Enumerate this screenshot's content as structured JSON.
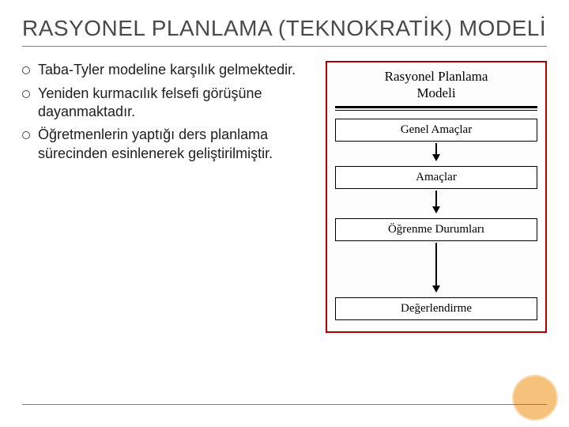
{
  "title": "RASYONEL PLANLAMA (TEKNOKRATİK) MODELİ",
  "bullets": [
    "Taba-Tyler modeline karşılık gelmektedir.",
    "Yeniden kurmacılık felsefi görüşüne dayanmaktadır.",
    "Öğretmenlerin yaptığı ders planlama sürecinden esinlenerek geliştirilmiştir."
  ],
  "diagram": {
    "title_line1": "Rasyonel Planlama",
    "title_line2": "Modeli",
    "boxes": [
      "Genel Amaçlar",
      "Amaçlar",
      "Öğrenme Durumları",
      "Değerlendirme"
    ],
    "border_color": "#b00000",
    "box_border_color": "#000000"
  },
  "accent_color": "#f6c17a"
}
